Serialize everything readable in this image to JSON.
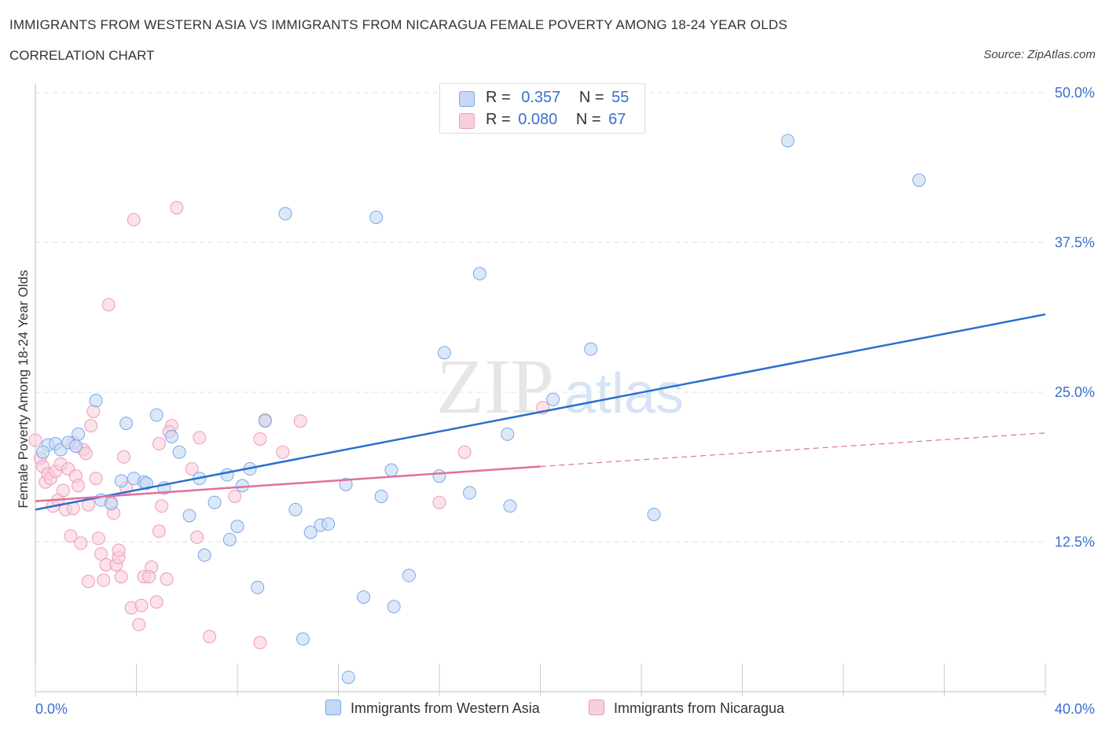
{
  "title": "IMMIGRANTS FROM WESTERN ASIA VS IMMIGRANTS FROM NICARAGUA FEMALE POVERTY AMONG 18-24 YEAR OLDS",
  "subtitle": "CORRELATION CHART",
  "source": "Source: ZipAtlas.com",
  "watermark": {
    "zip": "ZIP",
    "atlas": "atlas"
  },
  "legend": {
    "r_label": "R =",
    "n_label": "N =",
    "series": [
      {
        "r": "0.357",
        "n": "55"
      },
      {
        "r": "0.080",
        "n": "67"
      }
    ]
  },
  "chart_data": {
    "type": "scatter",
    "title": "IMMIGRANTS FROM WESTERN ASIA VS IMMIGRANTS FROM NICARAGUA FEMALE POVERTY AMONG 18-24 YEAR OLDS",
    "xlabel": "",
    "ylabel": "Female Poverty Among 18-24 Year Olds",
    "xlim": [
      0,
      40
    ],
    "ylim": [
      0,
      50
    ],
    "x_tick_labels": [
      "0.0%",
      "40.0%"
    ],
    "y_tick_values": [
      12.5,
      25,
      37.5,
      50
    ],
    "y_tick_labels": [
      "12.5%",
      "25.0%",
      "37.5%",
      "50.0%"
    ],
    "grid": "horizontal dashed",
    "legend_position": "top-center",
    "series": [
      {
        "name": "Immigrants from Western Asia",
        "color": "#7aa8e8",
        "fill": "#c4d8f4",
        "line_color": "#2a6fd0",
        "trend": {
          "x": [
            0,
            40
          ],
          "y": [
            15.2,
            31.5
          ]
        },
        "points": [
          [
            0.5,
            20.6
          ],
          [
            0.8,
            20.7
          ],
          [
            1.0,
            20.2
          ],
          [
            1.3,
            20.8
          ],
          [
            1.7,
            21.5
          ],
          [
            1.6,
            20.5
          ],
          [
            2.4,
            24.3
          ],
          [
            2.6,
            16.0
          ],
          [
            3.0,
            15.7
          ],
          [
            3.4,
            17.6
          ],
          [
            3.6,
            22.4
          ],
          [
            3.9,
            17.8
          ],
          [
            4.3,
            17.5
          ],
          [
            4.4,
            17.4
          ],
          [
            4.8,
            23.1
          ],
          [
            5.1,
            17.0
          ],
          [
            5.4,
            21.3
          ],
          [
            5.7,
            20.0
          ],
          [
            6.1,
            14.7
          ],
          [
            6.5,
            17.8
          ],
          [
            6.7,
            11.4
          ],
          [
            7.1,
            15.8
          ],
          [
            7.6,
            18.1
          ],
          [
            7.7,
            12.7
          ],
          [
            8.0,
            13.8
          ],
          [
            8.2,
            17.2
          ],
          [
            8.5,
            18.6
          ],
          [
            8.8,
            8.7
          ],
          [
            9.1,
            22.6
          ],
          [
            9.9,
            39.9
          ],
          [
            10.3,
            15.2
          ],
          [
            10.6,
            4.4
          ],
          [
            10.9,
            13.3
          ],
          [
            11.3,
            13.9
          ],
          [
            11.6,
            14.0
          ],
          [
            12.3,
            17.3
          ],
          [
            12.4,
            1.2
          ],
          [
            13.0,
            7.9
          ],
          [
            13.5,
            39.6
          ],
          [
            13.7,
            16.3
          ],
          [
            14.1,
            18.5
          ],
          [
            14.2,
            7.1
          ],
          [
            14.8,
            9.7
          ],
          [
            16.0,
            18.0
          ],
          [
            16.2,
            28.3
          ],
          [
            17.2,
            16.6
          ],
          [
            17.6,
            34.9
          ],
          [
            18.7,
            21.5
          ],
          [
            18.8,
            15.5
          ],
          [
            20.5,
            24.4
          ],
          [
            22.0,
            28.6
          ],
          [
            24.5,
            14.8
          ],
          [
            29.8,
            46.0
          ],
          [
            35.0,
            42.7
          ],
          [
            0.3,
            20.0
          ]
        ]
      },
      {
        "name": "Immigrants from Nicaragua",
        "color": "#ee9bb8",
        "fill": "#f8cfdd",
        "line_color": "#e07099",
        "trend": {
          "x": [
            0,
            20
          ],
          "y": [
            15.9,
            18.8
          ]
        },
        "trend_extended": {
          "x": [
            20,
            40
          ],
          "y": [
            18.8,
            21.6
          ]
        },
        "points": [
          [
            0.0,
            21.0
          ],
          [
            0.2,
            19.5
          ],
          [
            0.3,
            18.8
          ],
          [
            0.4,
            17.5
          ],
          [
            0.5,
            18.2
          ],
          [
            0.6,
            17.8
          ],
          [
            0.7,
            15.5
          ],
          [
            0.8,
            18.4
          ],
          [
            0.9,
            16.0
          ],
          [
            1.0,
            19.0
          ],
          [
            1.1,
            16.8
          ],
          [
            1.2,
            15.2
          ],
          [
            1.3,
            18.6
          ],
          [
            1.4,
            13.0
          ],
          [
            1.5,
            20.8
          ],
          [
            1.6,
            18.0
          ],
          [
            1.7,
            17.2
          ],
          [
            1.8,
            12.4
          ],
          [
            1.9,
            20.2
          ],
          [
            2.0,
            19.9
          ],
          [
            2.1,
            15.6
          ],
          [
            2.2,
            22.2
          ],
          [
            2.3,
            23.4
          ],
          [
            2.4,
            17.8
          ],
          [
            2.5,
            12.8
          ],
          [
            2.6,
            11.5
          ],
          [
            2.7,
            9.3
          ],
          [
            2.8,
            10.6
          ],
          [
            2.9,
            32.3
          ],
          [
            3.0,
            15.8
          ],
          [
            3.1,
            14.9
          ],
          [
            3.2,
            10.6
          ],
          [
            3.3,
            11.2
          ],
          [
            3.4,
            9.6
          ],
          [
            3.5,
            19.6
          ],
          [
            3.6,
            17.0
          ],
          [
            3.8,
            7.0
          ],
          [
            3.9,
            39.4
          ],
          [
            4.1,
            5.6
          ],
          [
            4.3,
            9.6
          ],
          [
            4.6,
            10.4
          ],
          [
            4.8,
            7.5
          ],
          [
            4.9,
            13.4
          ],
          [
            5.0,
            15.5
          ],
          [
            5.2,
            9.4
          ],
          [
            5.4,
            22.2
          ],
          [
            5.6,
            40.4
          ],
          [
            6.2,
            18.6
          ],
          [
            6.5,
            21.2
          ],
          [
            6.9,
            4.6
          ],
          [
            7.9,
            16.3
          ],
          [
            8.9,
            4.1
          ],
          [
            9.1,
            22.7
          ],
          [
            9.8,
            20.0
          ],
          [
            10.5,
            22.6
          ],
          [
            16.0,
            15.8
          ],
          [
            17.0,
            20.0
          ],
          [
            20.1,
            23.7
          ],
          [
            4.2,
            7.2
          ],
          [
            2.1,
            9.2
          ],
          [
            4.9,
            20.7
          ],
          [
            5.3,
            21.7
          ],
          [
            6.4,
            12.9
          ],
          [
            8.9,
            21.1
          ],
          [
            1.5,
            15.3
          ],
          [
            3.3,
            11.8
          ],
          [
            4.5,
            9.6
          ]
        ]
      }
    ]
  }
}
